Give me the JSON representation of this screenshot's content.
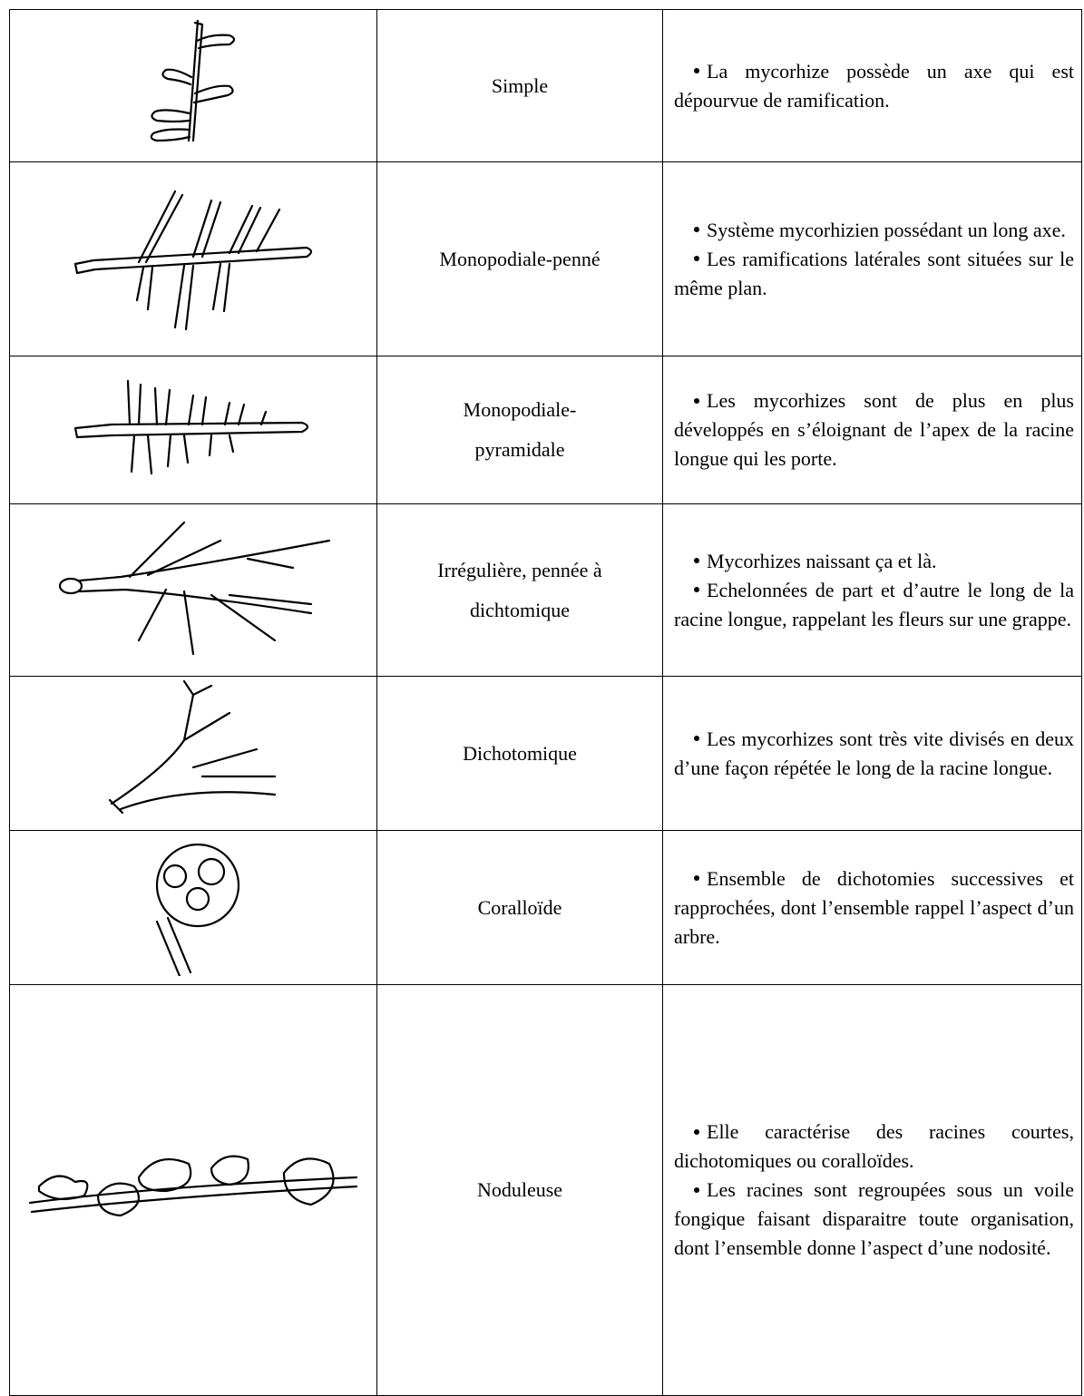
{
  "table": {
    "rows": [
      {
        "name": [
          "Simple"
        ],
        "bullets": [
          "La mycorhize possède un axe qui est dépourvue de ramification."
        ]
      },
      {
        "name": [
          "Monopodiale-penné"
        ],
        "bullets": [
          "Système mycorhizien possédant un long axe.",
          "Les ramifications latérales sont situées sur le même plan."
        ]
      },
      {
        "name": [
          "Monopodiale-",
          "pyramidale"
        ],
        "bullets": [
          "Les mycorhizes sont de plus en plus développés en s’éloignant de l’apex de la racine longue qui les porte."
        ]
      },
      {
        "name": [
          "Irrégulière, pennée à",
          "dichtomique"
        ],
        "bullets": [
          "Mycorhizes naissant  ça et là.",
          "Echelonnées de part et d’autre le long de la racine longue, rappelant les fleurs sur une grappe."
        ]
      },
      {
        "name": [
          "Dichotomique"
        ],
        "bullets": [
          "Les mycorhizes sont très vite divisés en deux d’une façon répétée le long de la racine longue."
        ]
      },
      {
        "name": [
          "Coralloïde"
        ],
        "bullets": [
          "Ensemble de dichotomies successives et rapprochées, dont l’ensemble rappel l’aspect d’un arbre."
        ]
      },
      {
        "name": [
          "Noduleuse"
        ],
        "bullets": [
          "Elle caractérise des racines courtes, dichotomiques ou coralloïdes.",
          "Les racines sont regroupées sous un voile fongique faisant disparaitre toute organisation, dont l’ensemble donne l’aspect d’une nodosité."
        ]
      }
    ]
  }
}
